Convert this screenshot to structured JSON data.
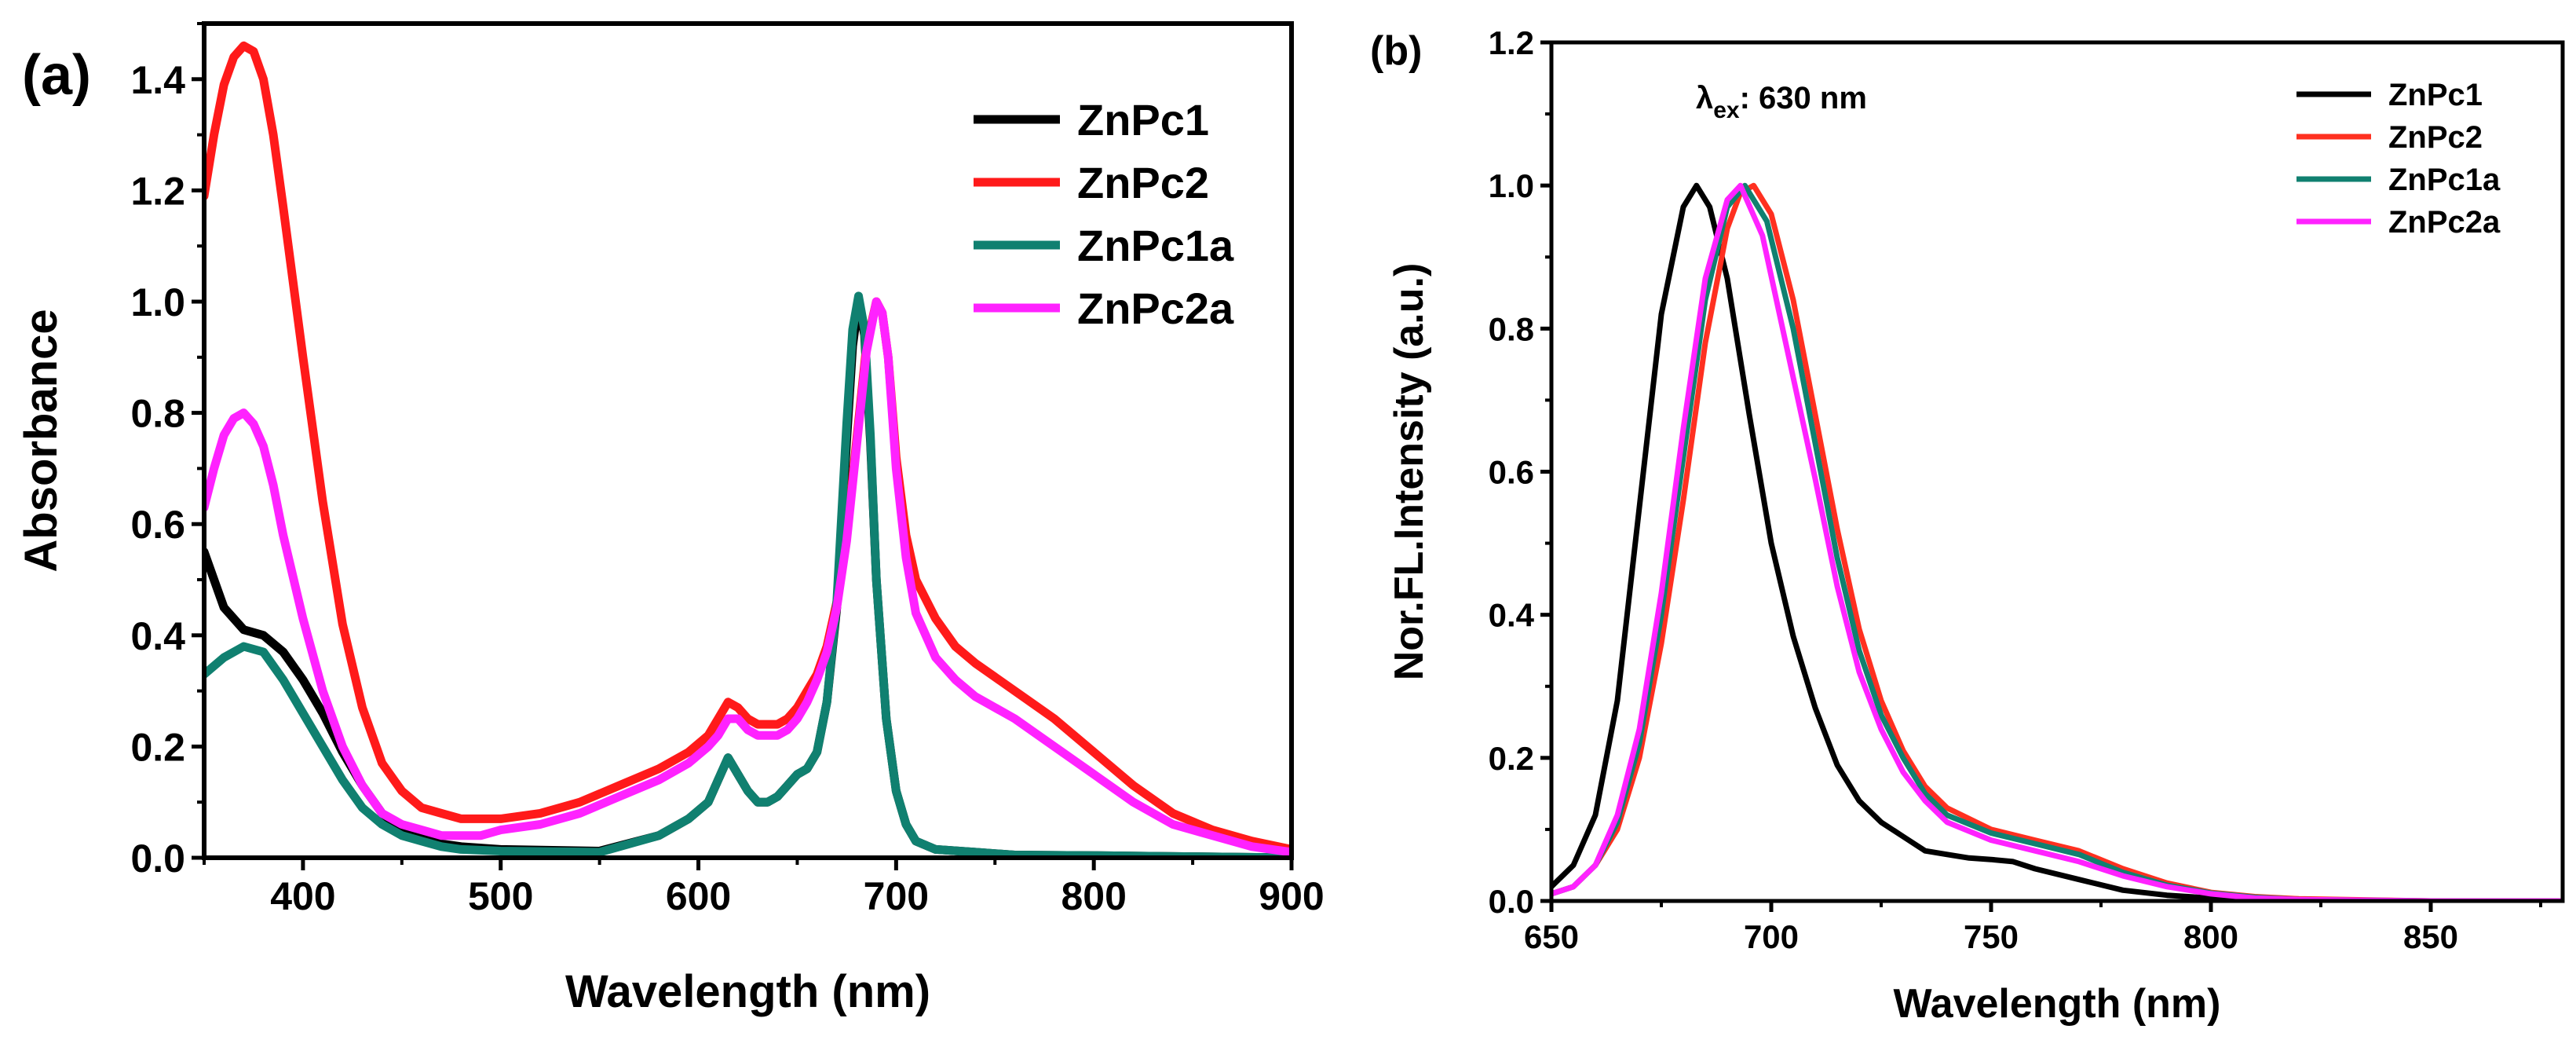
{
  "chart_data": [
    {
      "panel": "(a)",
      "type": "line",
      "xlabel": "Wavelength (nm)",
      "ylabel": "Absorbance",
      "xlim": [
        350,
        900
      ],
      "ylim": [
        0,
        1.5
      ],
      "xticks": [
        400,
        500,
        600,
        700,
        800,
        900
      ],
      "yticks": [
        0.0,
        0.2,
        0.4,
        0.6,
        0.8,
        1.0,
        1.2,
        1.4
      ],
      "legend_position": "top-right",
      "grid": false,
      "series": [
        {
          "name": "ZnPc1",
          "color": "#000000",
          "x": [
            350,
            360,
            370,
            380,
            390,
            400,
            410,
            420,
            430,
            440,
            450,
            460,
            470,
            480,
            500,
            550,
            580,
            595,
            605,
            610,
            615,
            620,
            625,
            630,
            635,
            640,
            645,
            650,
            655,
            660,
            665,
            670,
            675,
            678,
            681,
            684,
            687,
            690,
            695,
            700,
            705,
            710,
            720,
            740,
            760,
            800,
            850,
            900
          ],
          "y": [
            0.55,
            0.45,
            0.41,
            0.4,
            0.37,
            0.32,
            0.26,
            0.19,
            0.13,
            0.08,
            0.05,
            0.035,
            0.025,
            0.02,
            0.015,
            0.012,
            0.04,
            0.07,
            0.1,
            0.14,
            0.18,
            0.15,
            0.12,
            0.1,
            0.1,
            0.11,
            0.13,
            0.15,
            0.16,
            0.19,
            0.28,
            0.45,
            0.75,
            0.92,
            1.0,
            0.94,
            0.75,
            0.5,
            0.25,
            0.12,
            0.06,
            0.03,
            0.015,
            0.01,
            0.005,
            0.004,
            0.002,
            0.0
          ]
        },
        {
          "name": "ZnPc2",
          "color": "#ff1a1a",
          "x": [
            350,
            355,
            360,
            365,
            370,
            375,
            380,
            385,
            390,
            400,
            410,
            420,
            430,
            440,
            450,
            460,
            470,
            480,
            490,
            500,
            520,
            540,
            560,
            580,
            595,
            605,
            610,
            615,
            620,
            625,
            630,
            635,
            640,
            645,
            650,
            655,
            660,
            665,
            670,
            675,
            680,
            685,
            690,
            693,
            696,
            700,
            705,
            710,
            720,
            730,
            740,
            760,
            780,
            800,
            820,
            840,
            860,
            880,
            900
          ],
          "y": [
            1.19,
            1.3,
            1.39,
            1.44,
            1.46,
            1.45,
            1.4,
            1.3,
            1.17,
            0.9,
            0.64,
            0.42,
            0.27,
            0.17,
            0.12,
            0.09,
            0.08,
            0.07,
            0.07,
            0.07,
            0.08,
            0.1,
            0.13,
            0.16,
            0.19,
            0.22,
            0.25,
            0.28,
            0.27,
            0.25,
            0.24,
            0.24,
            0.24,
            0.25,
            0.27,
            0.3,
            0.33,
            0.38,
            0.46,
            0.58,
            0.75,
            0.92,
            1.0,
            0.98,
            0.9,
            0.72,
            0.58,
            0.5,
            0.43,
            0.38,
            0.35,
            0.3,
            0.25,
            0.19,
            0.13,
            0.08,
            0.05,
            0.03,
            0.015
          ]
        },
        {
          "name": "ZnPc1a",
          "color": "#108070",
          "x": [
            350,
            360,
            370,
            380,
            390,
            400,
            410,
            420,
            430,
            440,
            450,
            460,
            470,
            480,
            500,
            550,
            580,
            595,
            605,
            610,
            615,
            620,
            625,
            630,
            635,
            640,
            645,
            650,
            655,
            660,
            665,
            670,
            675,
            678,
            681,
            684,
            687,
            690,
            695,
            700,
            705,
            710,
            720,
            740,
            760,
            800,
            850,
            900
          ],
          "y": [
            0.33,
            0.36,
            0.38,
            0.37,
            0.32,
            0.26,
            0.2,
            0.14,
            0.09,
            0.06,
            0.04,
            0.03,
            0.02,
            0.015,
            0.012,
            0.01,
            0.04,
            0.07,
            0.1,
            0.14,
            0.18,
            0.15,
            0.12,
            0.1,
            0.1,
            0.11,
            0.13,
            0.15,
            0.16,
            0.19,
            0.28,
            0.46,
            0.78,
            0.95,
            1.01,
            0.95,
            0.76,
            0.5,
            0.25,
            0.12,
            0.06,
            0.03,
            0.015,
            0.01,
            0.005,
            0.004,
            0.002,
            0.0
          ]
        },
        {
          "name": "ZnPc2a",
          "color": "#ff22ff",
          "x": [
            350,
            355,
            360,
            365,
            370,
            375,
            380,
            385,
            390,
            400,
            410,
            420,
            430,
            440,
            450,
            460,
            470,
            480,
            490,
            500,
            520,
            540,
            560,
            580,
            595,
            605,
            610,
            615,
            620,
            625,
            630,
            635,
            640,
            645,
            650,
            655,
            660,
            665,
            670,
            675,
            680,
            685,
            690,
            693,
            696,
            700,
            705,
            710,
            720,
            730,
            740,
            760,
            780,
            800,
            820,
            840,
            860,
            880,
            900
          ],
          "y": [
            0.63,
            0.7,
            0.76,
            0.79,
            0.8,
            0.78,
            0.74,
            0.67,
            0.58,
            0.43,
            0.3,
            0.2,
            0.13,
            0.08,
            0.06,
            0.05,
            0.04,
            0.04,
            0.04,
            0.05,
            0.06,
            0.08,
            0.11,
            0.14,
            0.17,
            0.2,
            0.22,
            0.25,
            0.25,
            0.23,
            0.22,
            0.22,
            0.22,
            0.23,
            0.25,
            0.28,
            0.32,
            0.37,
            0.45,
            0.57,
            0.74,
            0.91,
            1.0,
            0.98,
            0.9,
            0.7,
            0.54,
            0.44,
            0.36,
            0.32,
            0.29,
            0.25,
            0.2,
            0.15,
            0.1,
            0.06,
            0.04,
            0.02,
            0.01
          ]
        }
      ]
    },
    {
      "panel": "(b)",
      "type": "line",
      "xlabel": "Wavelength (nm)",
      "ylabel": "Nor.FL.Intensity (a.u.)",
      "annotation": {
        "symbol": "λ",
        "subscript": "ex",
        "text": ": 630 nm"
      },
      "xlim": [
        650,
        880
      ],
      "ylim": [
        0,
        1.2
      ],
      "xticks": [
        650,
        700,
        750,
        800,
        850
      ],
      "yticks": [
        0.0,
        0.2,
        0.4,
        0.6,
        0.8,
        1.0,
        1.2
      ],
      "legend_position": "top-right",
      "grid": false,
      "series": [
        {
          "name": "ZnPc1",
          "color": "#000000",
          "x": [
            650,
            655,
            660,
            665,
            670,
            675,
            680,
            683,
            686,
            690,
            695,
            700,
            705,
            710,
            715,
            720,
            725,
            730,
            735,
            740,
            745,
            750,
            755,
            760,
            770,
            780,
            790,
            800,
            820,
            850,
            880
          ],
          "y": [
            0.02,
            0.05,
            0.12,
            0.28,
            0.55,
            0.82,
            0.97,
            1.0,
            0.97,
            0.87,
            0.68,
            0.5,
            0.37,
            0.27,
            0.19,
            0.14,
            0.11,
            0.09,
            0.07,
            0.065,
            0.06,
            0.058,
            0.055,
            0.045,
            0.03,
            0.015,
            0.008,
            0.004,
            0.0,
            0.0,
            0.0
          ]
        },
        {
          "name": "ZnPc2",
          "color": "#ff3020",
          "x": [
            650,
            655,
            660,
            665,
            670,
            675,
            680,
            685,
            690,
            693,
            696,
            700,
            705,
            710,
            715,
            720,
            725,
            730,
            735,
            740,
            750,
            760,
            770,
            780,
            790,
            800,
            810,
            820,
            850,
            880
          ],
          "y": [
            0.01,
            0.02,
            0.05,
            0.1,
            0.2,
            0.36,
            0.56,
            0.78,
            0.94,
            0.99,
            1.0,
            0.96,
            0.84,
            0.68,
            0.52,
            0.38,
            0.28,
            0.21,
            0.16,
            0.13,
            0.1,
            0.085,
            0.07,
            0.045,
            0.025,
            0.012,
            0.006,
            0.003,
            0.0,
            0.0
          ]
        },
        {
          "name": "ZnPc1a",
          "color": "#108070",
          "x": [
            650,
            655,
            660,
            665,
            670,
            675,
            680,
            685,
            690,
            694,
            699,
            705,
            710,
            715,
            720,
            725,
            730,
            735,
            740,
            750,
            760,
            770,
            780,
            790,
            800,
            810,
            820,
            850,
            880
          ],
          "y": [
            0.01,
            0.02,
            0.05,
            0.11,
            0.22,
            0.4,
            0.62,
            0.84,
            0.97,
            1.0,
            0.95,
            0.8,
            0.64,
            0.48,
            0.35,
            0.26,
            0.2,
            0.15,
            0.12,
            0.095,
            0.08,
            0.065,
            0.04,
            0.022,
            0.011,
            0.005,
            0.002,
            0.0,
            0.0
          ]
        },
        {
          "name": "ZnPc2a",
          "color": "#ff22ff",
          "x": [
            650,
            655,
            660,
            665,
            670,
            675,
            680,
            685,
            690,
            693,
            698,
            704,
            710,
            715,
            720,
            725,
            730,
            735,
            740,
            750,
            760,
            770,
            780,
            790,
            800,
            810,
            820,
            850,
            880
          ],
          "y": [
            0.01,
            0.02,
            0.05,
            0.12,
            0.24,
            0.43,
            0.66,
            0.87,
            0.98,
            1.0,
            0.93,
            0.76,
            0.59,
            0.44,
            0.32,
            0.24,
            0.18,
            0.14,
            0.11,
            0.085,
            0.07,
            0.055,
            0.035,
            0.02,
            0.01,
            0.004,
            0.002,
            0.0,
            0.0
          ]
        }
      ]
    }
  ]
}
